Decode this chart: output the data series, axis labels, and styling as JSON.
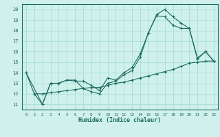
{
  "xlabel": "Humidex (Indice chaleur)",
  "xlim": [
    -0.5,
    23.5
  ],
  "ylim": [
    10.5,
    20.5
  ],
  "xticks": [
    0,
    1,
    2,
    3,
    4,
    5,
    6,
    7,
    8,
    9,
    10,
    11,
    12,
    13,
    14,
    15,
    16,
    17,
    18,
    19,
    20,
    21,
    22,
    23
  ],
  "yticks": [
    11,
    12,
    13,
    14,
    15,
    16,
    17,
    18,
    19,
    20
  ],
  "bg_color": "#cff0eb",
  "grid_color": "#a8ddd7",
  "line_color": "#1a6b60",
  "line1_x": [
    0,
    1,
    2,
    3,
    4,
    5,
    6,
    7,
    8,
    9,
    10,
    11,
    12,
    13,
    14,
    15,
    16,
    17,
    18,
    19,
    20,
    21,
    22,
    23
  ],
  "line1_y": [
    14,
    12,
    11,
    13,
    13,
    13.3,
    13.3,
    12.5,
    12.2,
    12.0,
    13.0,
    13.2,
    13.8,
    14.2,
    15.5,
    17.8,
    19.5,
    20.0,
    19.3,
    18.7,
    18.2,
    15.3,
    16.0,
    15.1
  ],
  "line2_x": [
    0,
    2,
    3,
    4,
    5,
    6,
    7,
    8,
    9,
    10,
    11,
    12,
    13,
    14,
    15,
    16,
    17,
    18,
    19,
    20,
    21,
    22,
    23
  ],
  "line2_y": [
    14,
    11,
    13,
    13,
    13.3,
    13.2,
    13.2,
    12.8,
    12.3,
    13.5,
    13.3,
    14.0,
    14.5,
    15.8,
    17.8,
    19.4,
    19.3,
    18.5,
    18.2,
    18.2,
    15.4,
    16.0,
    15.1
  ],
  "line3_x": [
    1,
    2,
    3,
    4,
    5,
    6,
    7,
    8,
    9,
    10,
    11,
    12,
    13,
    14,
    15,
    16,
    17,
    18,
    19,
    20,
    21,
    22,
    23
  ],
  "line3_y": [
    12,
    12,
    12.1,
    12.2,
    12.3,
    12.4,
    12.5,
    12.6,
    12.6,
    12.8,
    13.0,
    13.1,
    13.3,
    13.5,
    13.7,
    13.9,
    14.1,
    14.3,
    14.6,
    14.9,
    15.0,
    15.1,
    15.1
  ]
}
